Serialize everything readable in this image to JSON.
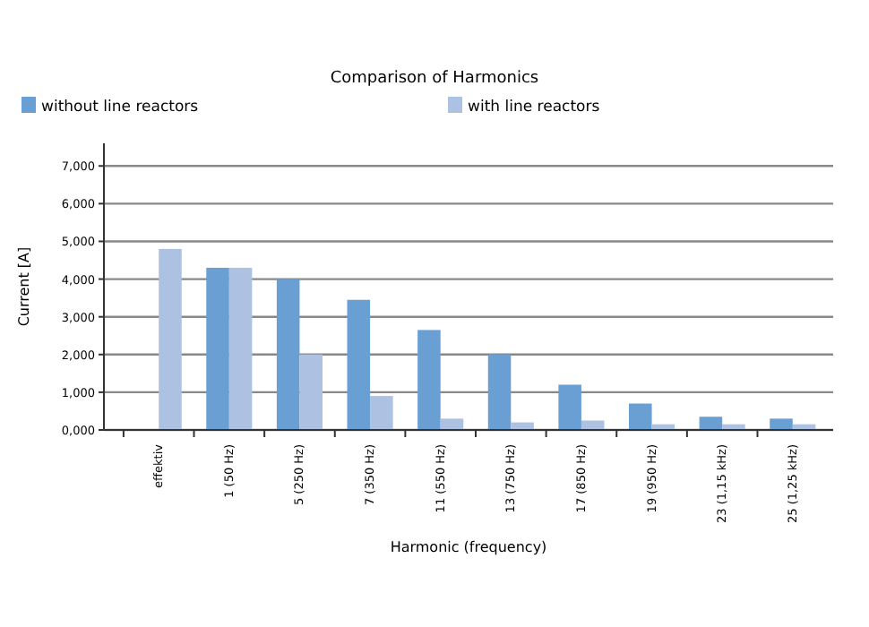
{
  "chart_data": {
    "type": "bar",
    "title": "Comparison of Harmonics",
    "xlabel": "Harmonic (frequency)",
    "ylabel": "Current [A]",
    "categories": [
      "effektiv",
      "1 (50 Hz)",
      "5 (250 Hz)",
      "7 (350 Hz)",
      "11 (550 Hz)",
      "13 (750 Hz)",
      "17 (850 Hz)",
      "19 (950 Hz)",
      "23 (1,15  kHz)",
      "25 (1,25  kHz)"
    ],
    "series": [
      {
        "name": "without line reactors",
        "color": "#6a9fd4",
        "values": [
          null,
          4.3,
          4.0,
          3.45,
          2.65,
          2.0,
          1.2,
          0.7,
          0.35,
          0.3
        ]
      },
      {
        "name": "with line reactors",
        "color": "#adc2e2",
        "values": [
          4.8,
          4.3,
          2.0,
          0.9,
          0.3,
          0.2,
          0.25,
          0.15,
          0.15,
          0.15
        ]
      }
    ],
    "ylim": [
      0,
      7.6
    ],
    "yticks": [
      {
        "value": 0,
        "label": "0,000"
      },
      {
        "value": 1,
        "label": "1,000"
      },
      {
        "value": 2,
        "label": "2,000"
      },
      {
        "value": 3,
        "label": "3,000"
      },
      {
        "value": 4,
        "label": "4,000"
      },
      {
        "value": 5,
        "label": "5,000"
      },
      {
        "value": 6,
        "label": "6,000"
      },
      {
        "value": 7,
        "label": "7,000"
      }
    ],
    "grid": true,
    "legend": "top"
  }
}
